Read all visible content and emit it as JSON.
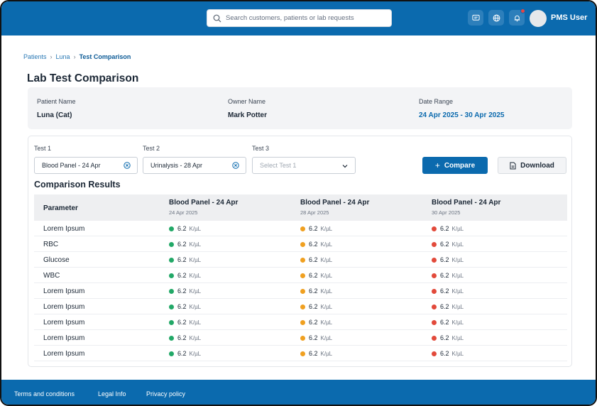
{
  "colors": {
    "primary": "#0b6aae",
    "good": "#22a867",
    "warn": "#f0a020",
    "bad": "#e24a3b"
  },
  "header": {
    "search_placeholder": "Search customers, patients or lab requests",
    "user_name": "PMS User",
    "icons": [
      "chat-icon",
      "globe-icon",
      "bell-icon"
    ]
  },
  "breadcrumb": {
    "items": [
      "Patients",
      "Luna"
    ],
    "current": "Test Comparison"
  },
  "page": {
    "title": "Lab Test Comparison"
  },
  "patient": {
    "patient_label": "Patient Name",
    "patient_value": "Luna (Cat)",
    "owner_label": "Owner Name",
    "owner_value": "Mark Potter",
    "range_label": "Date Range",
    "range_value": "24 Apr 2025 - 30 Apr 2025"
  },
  "filters": {
    "test1_label": "Test 1",
    "test1_value": "Blood Panel - 24 Apr",
    "test2_label": "Test 2",
    "test2_value": "Urinalysis - 28 Apr",
    "test3_label": "Test 3",
    "test3_placeholder": "Select Test 1",
    "compare_label": "Compare",
    "download_label": "Download"
  },
  "results": {
    "title": "Comparison Results",
    "param_header": "Parameter",
    "tests": [
      {
        "name": "Blood Panel - 24 Apr",
        "date": "24 Apr 2025"
      },
      {
        "name": "Blood Panel - 24 Apr",
        "date": "28 Apr 2025"
      },
      {
        "name": "Blood Panel - 24 Apr",
        "date": "30 Apr 2025"
      }
    ],
    "status_per_test": [
      "green",
      "orange",
      "red"
    ],
    "rows": [
      {
        "param": "Lorem Ipsum",
        "values": [
          "6.2",
          "6.2",
          "6.2"
        ],
        "unit": "K/µL"
      },
      {
        "param": "RBC",
        "values": [
          "6.2",
          "6.2",
          "6.2"
        ],
        "unit": "K/µL"
      },
      {
        "param": "Glucose",
        "values": [
          "6.2",
          "6.2",
          "6.2"
        ],
        "unit": "K/µL"
      },
      {
        "param": "WBC",
        "values": [
          "6.2",
          "6.2",
          "6.2"
        ],
        "unit": "K/µL"
      },
      {
        "param": "Lorem Ipsum",
        "values": [
          "6.2",
          "6.2",
          "6.2"
        ],
        "unit": "K/µL"
      },
      {
        "param": "Lorem Ipsum",
        "values": [
          "6.2",
          "6.2",
          "6.2"
        ],
        "unit": "K/µL"
      },
      {
        "param": "Lorem Ipsum",
        "values": [
          "6.2",
          "6.2",
          "6.2"
        ],
        "unit": "K/µL"
      },
      {
        "param": "Lorem Ipsum",
        "values": [
          "6.2",
          "6.2",
          "6.2"
        ],
        "unit": "K/µL"
      },
      {
        "param": "Lorem Ipsum",
        "values": [
          "6.2",
          "6.2",
          "6.2"
        ],
        "unit": "K/µL"
      }
    ]
  },
  "footer": {
    "links": [
      "Terms and conditions",
      "Legal Info",
      "Privacy policy"
    ]
  }
}
